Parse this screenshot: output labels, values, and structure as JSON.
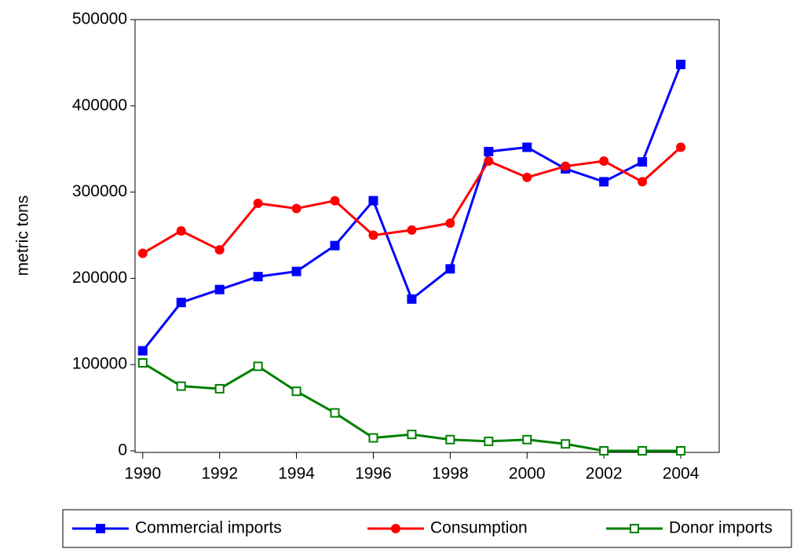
{
  "chart_data": {
    "type": "line",
    "y_label": "metric tons",
    "x": [
      1990,
      1991,
      1992,
      1993,
      1994,
      1995,
      1996,
      1997,
      1998,
      1999,
      2000,
      2001,
      2002,
      2003,
      2004
    ],
    "series": [
      {
        "name": "Commercial imports",
        "color": "#0000ff",
        "marker": "square-filled",
        "values": [
          116000,
          172000,
          187000,
          202000,
          208000,
          238000,
          290000,
          176000,
          211000,
          347000,
          352000,
          327000,
          312000,
          335000,
          448000
        ]
      },
      {
        "name": "Consumption",
        "color": "#ff0000",
        "marker": "circle-filled",
        "values": [
          229000,
          255000,
          233000,
          287000,
          281000,
          290000,
          250000,
          256000,
          264000,
          336000,
          317000,
          330000,
          336000,
          312000,
          352000
        ]
      },
      {
        "name": "Donor imports",
        "color": "#008000",
        "marker": "square-open",
        "values": [
          102000,
          75000,
          72000,
          98000,
          69000,
          44000,
          15000,
          19000,
          13000,
          11000,
          13000,
          8000,
          0,
          0,
          0
        ]
      }
    ],
    "xlim": [
      1989.8,
      2005
    ],
    "xticks": [
      1990,
      1992,
      1994,
      1996,
      1998,
      2000,
      2002,
      2004
    ],
    "ylim": [
      0,
      500000
    ],
    "yticks": [
      0,
      100000,
      200000,
      300000,
      400000,
      500000
    ],
    "grid": false,
    "legend": "bottom"
  }
}
